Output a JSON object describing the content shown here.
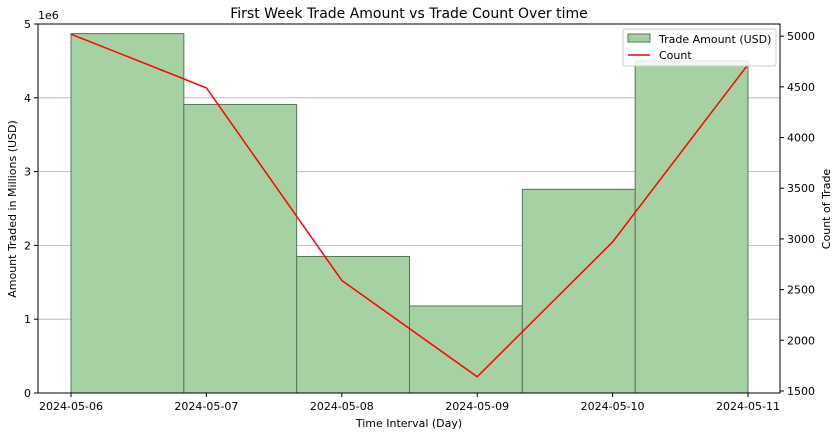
{
  "chart_data": {
    "type": "bar",
    "title": "First Week Trade Amount vs Trade Count Over time",
    "xlabel": "Time Interval (Day)",
    "ylabel": "Amount Traded in Millions (USD)",
    "y2label": "Count of Trade",
    "y_offset_label": "1e6",
    "x_ticks": [
      "2024-05-06",
      "2024-05-07",
      "2024-05-08",
      "2024-05-09",
      "2024-05-10",
      "2024-05-11"
    ],
    "y_ticks": [
      "0",
      "1",
      "2",
      "3",
      "4",
      "5"
    ],
    "y2_ticks": [
      "1500",
      "2000",
      "2500",
      "3000",
      "3500",
      "4000",
      "4500",
      "5000"
    ],
    "ylim": [
      0,
      5.0
    ],
    "y2lim": [
      1480,
      5120
    ],
    "grid": "y",
    "legend_position": "top-right",
    "bar_color": "#a5d1a3",
    "bar_edge_color": "#5b735a",
    "line_color": "#ff0000",
    "series": [
      {
        "name": "Trade Amount (USD)",
        "type": "bar",
        "axis": "left",
        "bins": [
          {
            "start": "2024-05-06 00:00",
            "end": "2024-05-06 20:00",
            "value": 4870000
          },
          {
            "start": "2024-05-06 20:00",
            "end": "2024-05-07 16:00",
            "value": 3910000
          },
          {
            "start": "2024-05-07 16:00",
            "end": "2024-05-08 12:00",
            "value": 1850000
          },
          {
            "start": "2024-05-08 12:00",
            "end": "2024-05-09 08:00",
            "value": 1180000
          },
          {
            "start": "2024-05-09 08:00",
            "end": "2024-05-10 04:00",
            "value": 2760000
          },
          {
            "start": "2024-05-10 04:00",
            "end": "2024-05-11 00:00",
            "value": 4500000
          }
        ]
      },
      {
        "name": "Count",
        "type": "line",
        "axis": "right",
        "x": [
          "2024-05-06",
          "2024-05-07",
          "2024-05-08",
          "2024-05-09",
          "2024-05-10",
          "2024-05-11"
        ],
        "values": [
          5020,
          4490,
          2590,
          1640,
          2970,
          4720
        ]
      }
    ]
  }
}
